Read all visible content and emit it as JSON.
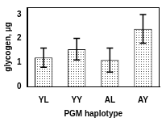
{
  "chart_data": {
    "type": "bar",
    "x_label": "PGM haplotype",
    "y_label": "glycogen, µg",
    "categories": [
      "YL",
      "YY",
      "AL",
      "AY"
    ],
    "values": [
      1.2,
      1.55,
      1.1,
      2.4
    ],
    "errors": [
      0.4,
      0.45,
      0.5,
      0.6
    ],
    "color": "#555555",
    "ylim": [
      0,
      3.3
    ],
    "yticks": [
      0,
      1,
      2,
      3
    ],
    "grid": false
  }
}
